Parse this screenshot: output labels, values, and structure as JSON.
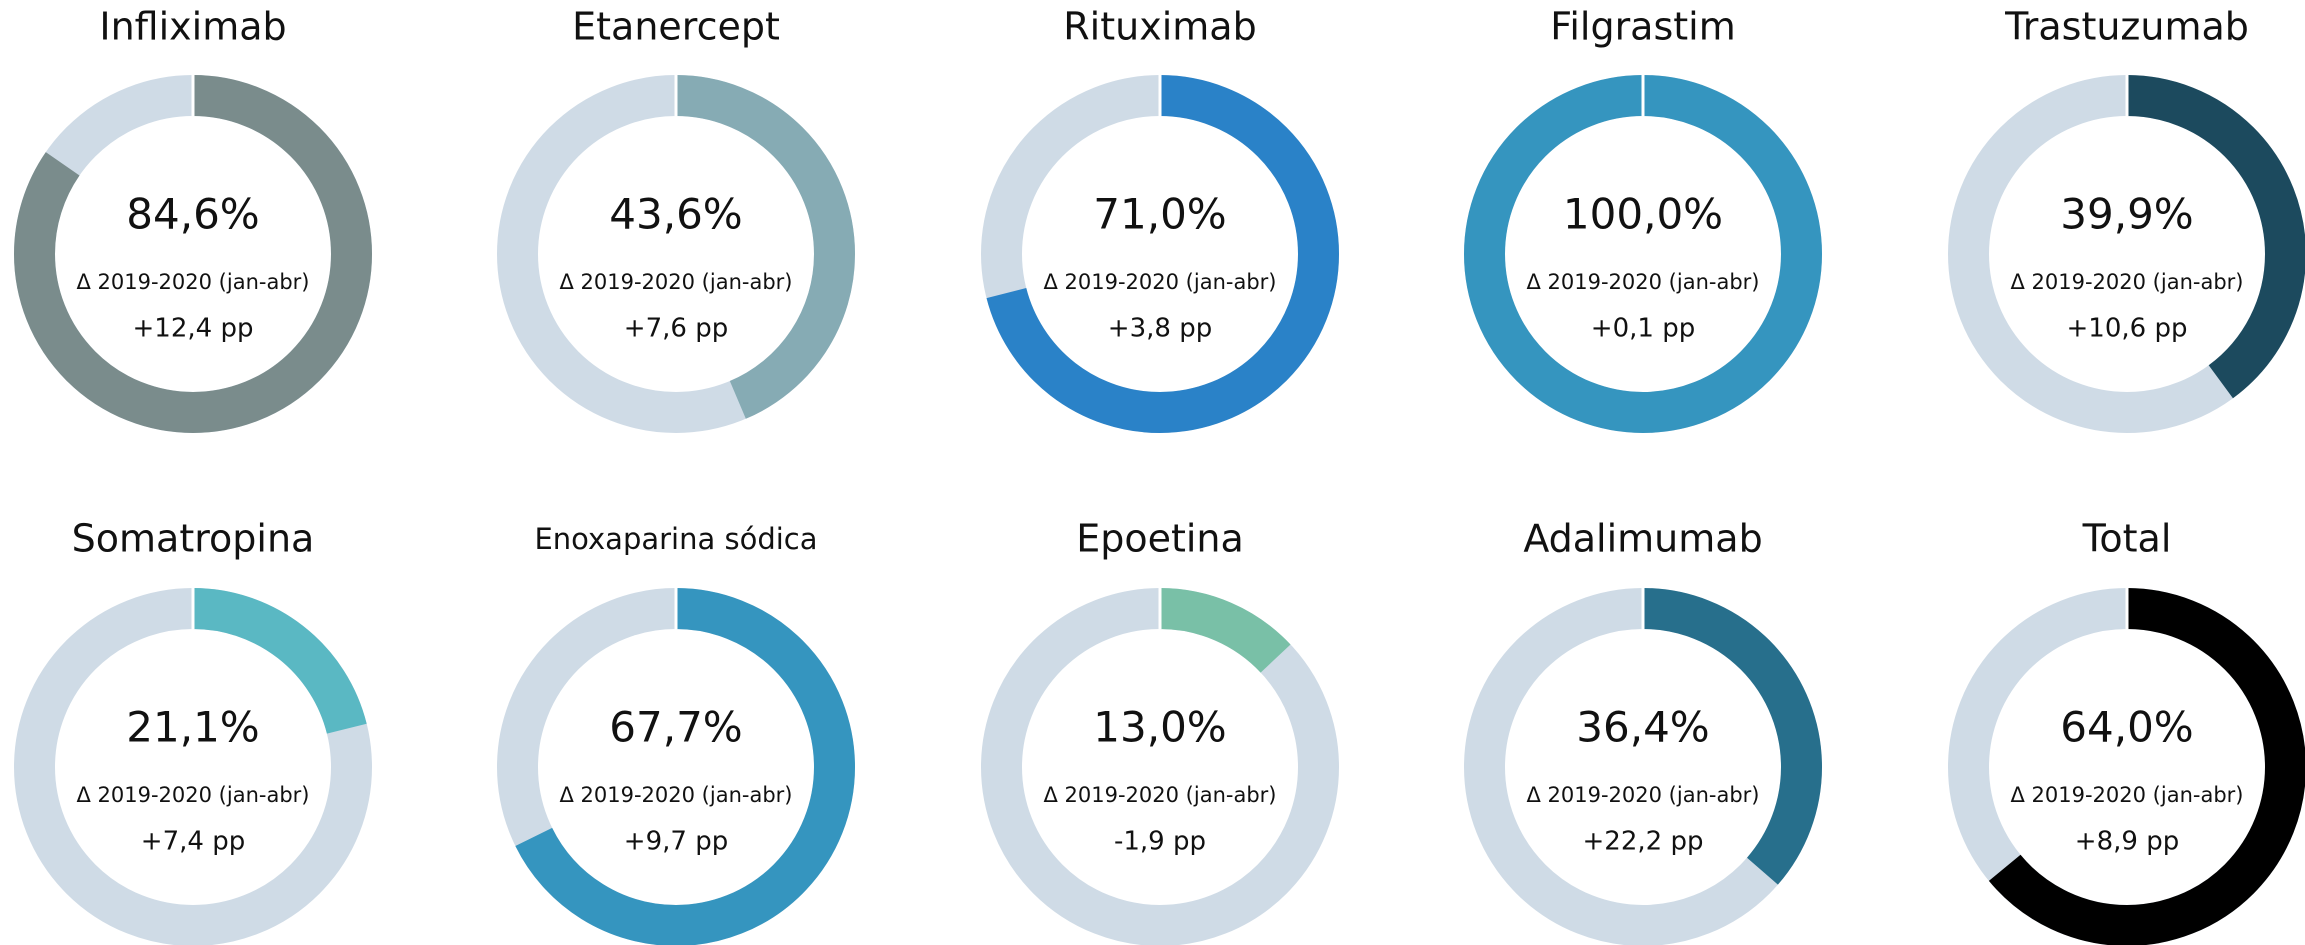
{
  "chart_data": [
    {
      "type": "pie",
      "title": "Infliximab",
      "values": [
        84.6
      ],
      "value_labels": [
        "84,6%"
      ],
      "color": "#7a8c8c",
      "subtitle": "Δ 2019-2020 (jan-abr)",
      "annotation": "+12,4 pp"
    },
    {
      "type": "pie",
      "title": "Etanercept",
      "values": [
        43.6
      ],
      "value_labels": [
        "43,6%"
      ],
      "color": "#86abb4",
      "subtitle": "Δ 2019-2020 (jan-abr)",
      "annotation": "+7,6 pp"
    },
    {
      "type": "pie",
      "title": "Rituximab",
      "values": [
        71.0
      ],
      "value_labels": [
        "71,0%"
      ],
      "color": "#2a82c8",
      "subtitle": "Δ 2019-2020 (jan-abr)",
      "annotation": "+3,8 pp"
    },
    {
      "type": "pie",
      "title": "Filgrastim",
      "values": [
        100.0
      ],
      "value_labels": [
        "100,0%"
      ],
      "color": "#3595bf",
      "subtitle": "Δ 2019-2020 (jan-abr)",
      "annotation": "+0,1 pp"
    },
    {
      "type": "pie",
      "title": "Trastuzumab",
      "values": [
        39.9
      ],
      "value_labels": [
        "39,9%"
      ],
      "color": "#1c4a5e",
      "subtitle": "Δ 2019-2020 (jan-abr)",
      "annotation": "+10,6 pp"
    },
    {
      "type": "pie",
      "title": "Somatropina",
      "values": [
        21.1
      ],
      "value_labels": [
        "21,1%"
      ],
      "color": "#5ab8c3",
      "subtitle": "Δ 2019-2020 (jan-abr)",
      "annotation": "+7,4 pp"
    },
    {
      "type": "pie",
      "title": "Enoxaparina sódica",
      "values": [
        67.7
      ],
      "value_labels": [
        "67,7%"
      ],
      "color": "#3595bf",
      "subtitle": "Δ 2019-2020 (jan-abr)",
      "annotation": "+9,7 pp"
    },
    {
      "type": "pie",
      "title": "Epoetina",
      "values": [
        13.0
      ],
      "value_labels": [
        "13,0%"
      ],
      "color": "#79c0a7",
      "subtitle": "Δ 2019-2020 (jan-abr)",
      "annotation": "-1,9 pp"
    },
    {
      "type": "pie",
      "title": "Adalimumab",
      "values": [
        36.4
      ],
      "value_labels": [
        "36,4%"
      ],
      "color": "#276f8c",
      "subtitle": "Δ 2019-2020 (jan-abr)",
      "annotation": "+22,2 pp"
    },
    {
      "type": "pie",
      "title": "Total",
      "values": [
        64.0
      ],
      "value_labels": [
        "64,0%"
      ],
      "color": "#000000",
      "subtitle": "Δ 2019-2020 (jan-abr)",
      "annotation": "+8,9 pp"
    }
  ]
}
